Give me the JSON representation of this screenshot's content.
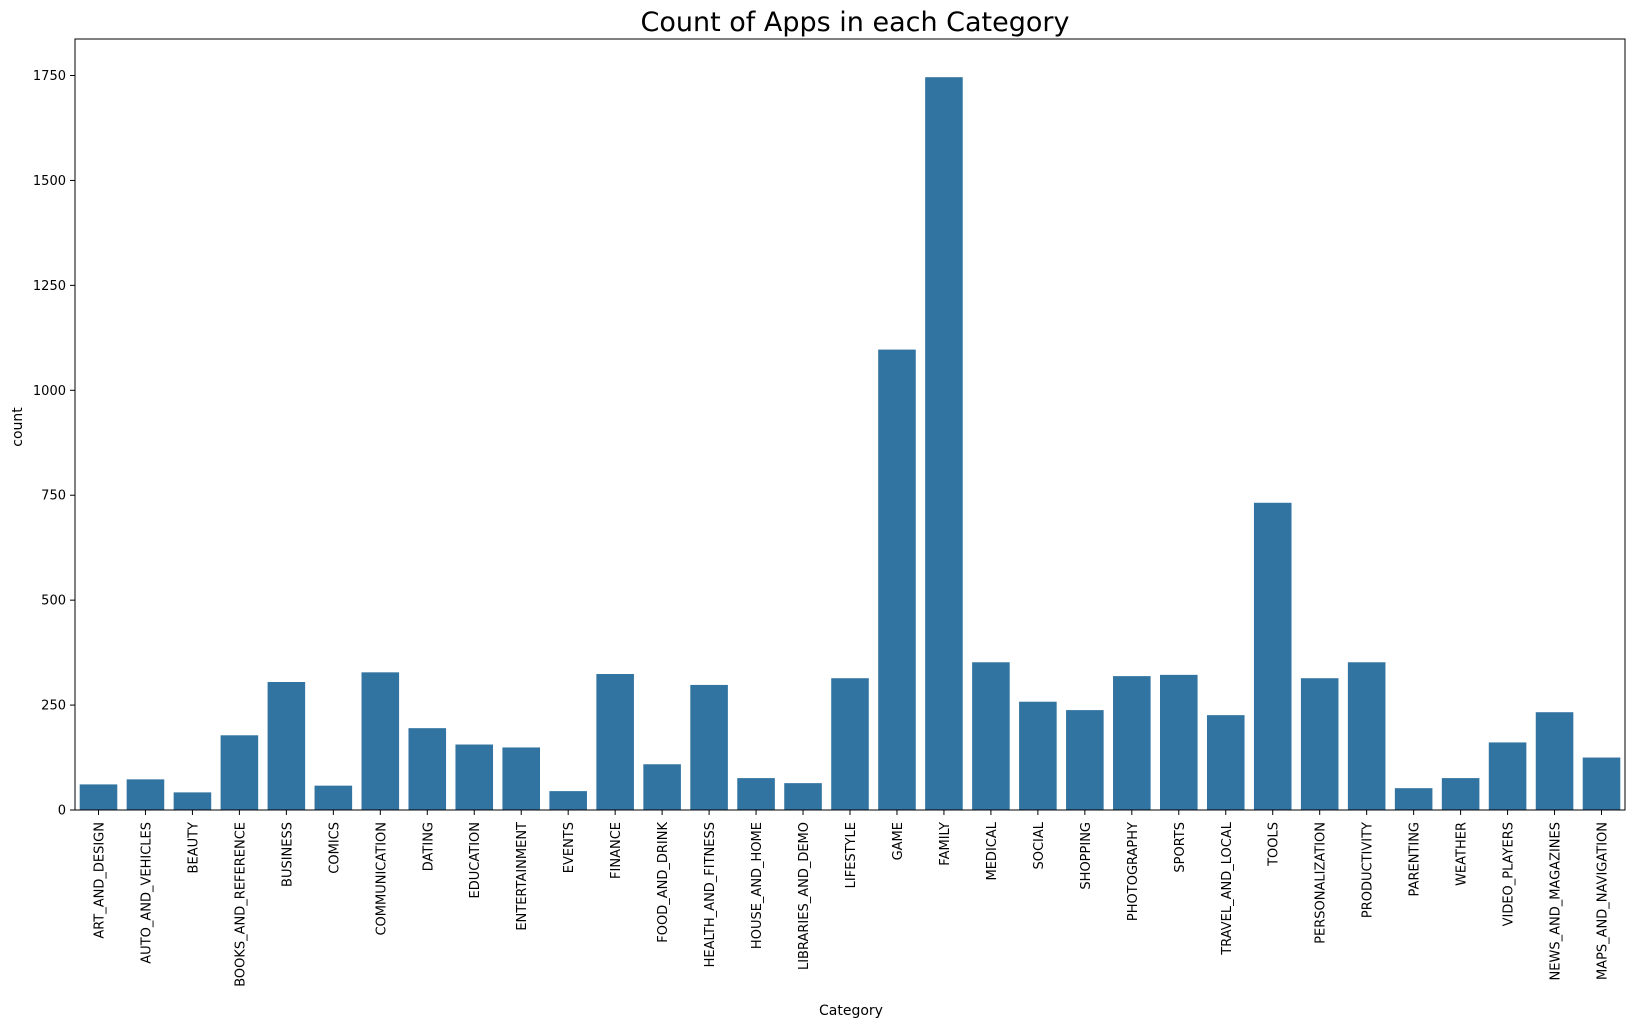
{
  "chart_data": {
    "type": "bar",
    "title": "Count of Apps in each Category",
    "xlabel": "Category",
    "ylabel": "count",
    "ylim": [
      0,
      1837
    ],
    "yticks": [
      0,
      250,
      500,
      750,
      1000,
      1250,
      1500,
      1750
    ],
    "grid": false,
    "bar_color": "#3274a1",
    "categories": [
      "ART_AND_DESIGN",
      "AUTO_AND_VEHICLES",
      "BEAUTY",
      "BOOKS_AND_REFERENCE",
      "BUSINESS",
      "COMICS",
      "COMMUNICATION",
      "DATING",
      "EDUCATION",
      "ENTERTAINMENT",
      "EVENTS",
      "FINANCE",
      "FOOD_AND_DRINK",
      "HEALTH_AND_FITNESS",
      "HOUSE_AND_HOME",
      "LIBRARIES_AND_DEMO",
      "LIFESTYLE",
      "GAME",
      "FAMILY",
      "MEDICAL",
      "SOCIAL",
      "SHOPPING",
      "PHOTOGRAPHY",
      "SPORTS",
      "TRAVEL_AND_LOCAL",
      "TOOLS",
      "PERSONALIZATION",
      "PRODUCTIVITY",
      "PARENTING",
      "WEATHER",
      "VIDEO_PLAYERS",
      "NEWS_AND_MAGAZINES",
      "MAPS_AND_NAVIGATION"
    ],
    "values": [
      61,
      73,
      42,
      178,
      305,
      58,
      328,
      195,
      156,
      149,
      45,
      324,
      109,
      298,
      76,
      64,
      314,
      1097,
      1746,
      352,
      258,
      238,
      319,
      322,
      226,
      732,
      314,
      352,
      52,
      76,
      161,
      233,
      125
    ]
  }
}
